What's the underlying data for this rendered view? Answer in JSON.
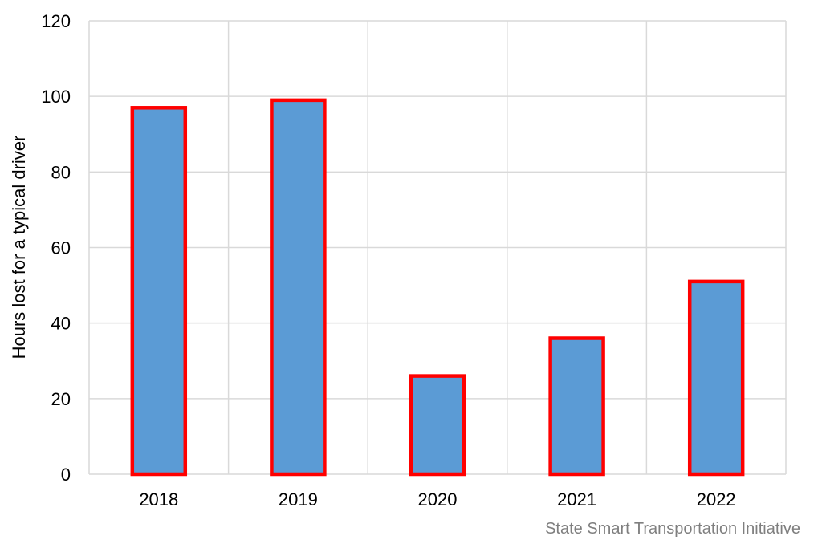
{
  "chart_data": {
    "type": "bar",
    "categories": [
      "2018",
      "2019",
      "2020",
      "2021",
      "2022"
    ],
    "values": [
      97,
      99,
      26,
      36,
      51
    ],
    "title": "",
    "xlabel": "",
    "ylabel": "Hours lost for a typical driver",
    "ylim": [
      0,
      120
    ],
    "yticks": [
      0,
      20,
      40,
      60,
      80,
      100,
      120
    ],
    "grid": true,
    "legend": "none",
    "bar_fill_color": "#5b9bd5",
    "bar_outline_color": "#ff0000",
    "gridline_color": "#d9d9d9"
  },
  "source_note": "State Smart Transportation Initiative"
}
